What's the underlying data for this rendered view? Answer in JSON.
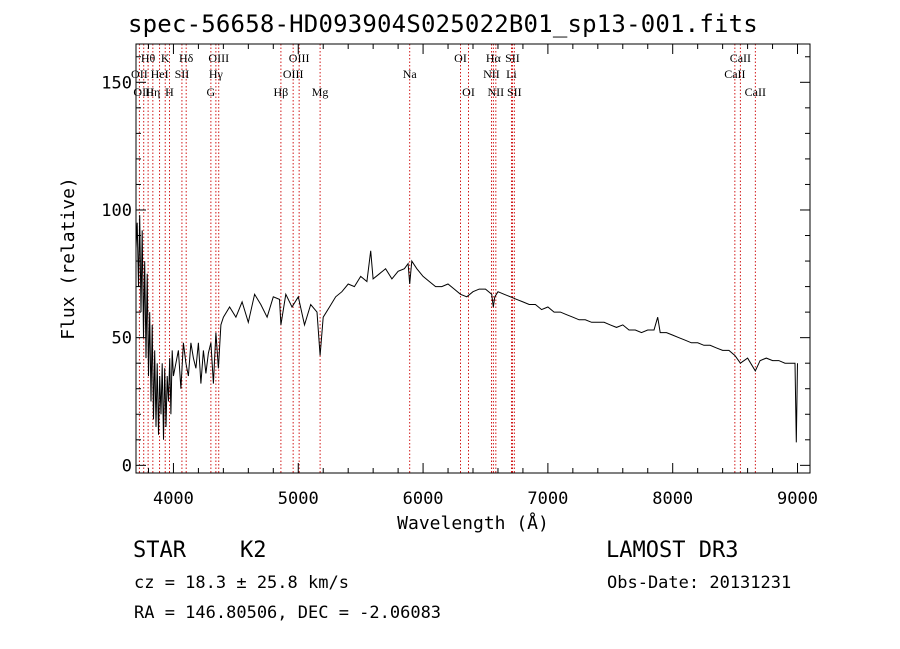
{
  "chart_data": {
    "type": "line",
    "title": "spec-56658-HD093904S025022B01_sp13-001.fits",
    "xlabel": "Wavelength (Å)",
    "ylabel": "Flux (relative)",
    "xlim": [
      3700,
      9100
    ],
    "ylim": [
      -3,
      165
    ],
    "xticks": [
      4000,
      5000,
      6000,
      7000,
      8000,
      9000
    ],
    "yticks": [
      0,
      50,
      100,
      150
    ],
    "series": [
      {
        "name": "flux",
        "x": [
          3700,
          3710,
          3720,
          3730,
          3740,
          3750,
          3760,
          3770,
          3780,
          3790,
          3800,
          3810,
          3820,
          3830,
          3840,
          3850,
          3860,
          3870,
          3880,
          3890,
          3900,
          3910,
          3920,
          3930,
          3940,
          3950,
          3960,
          3970,
          3980,
          3990,
          4000,
          4020,
          4040,
          4060,
          4080,
          4100,
          4120,
          4140,
          4160,
          4180,
          4200,
          4220,
          4240,
          4260,
          4280,
          4300,
          4320,
          4340,
          4360,
          4380,
          4400,
          4450,
          4500,
          4550,
          4600,
          4650,
          4700,
          4750,
          4800,
          4850,
          4861,
          4900,
          4950,
          5000,
          5050,
          5100,
          5150,
          5175,
          5200,
          5250,
          5300,
          5350,
          5400,
          5450,
          5500,
          5550,
          5580,
          5600,
          5650,
          5700,
          5750,
          5800,
          5850,
          5880,
          5893,
          5910,
          5950,
          6000,
          6050,
          6100,
          6150,
          6200,
          6250,
          6300,
          6350,
          6400,
          6450,
          6500,
          6550,
          6563,
          6575,
          6600,
          6650,
          6700,
          6750,
          6800,
          6850,
          6900,
          6950,
          7000,
          7050,
          7100,
          7150,
          7200,
          7250,
          7300,
          7350,
          7400,
          7450,
          7500,
          7550,
          7600,
          7650,
          7700,
          7750,
          7800,
          7850,
          7880,
          7900,
          7950,
          8000,
          8050,
          8100,
          8150,
          8200,
          8250,
          8300,
          8350,
          8400,
          8450,
          8498,
          8542,
          8600,
          8662,
          8700,
          8750,
          8800,
          8850,
          8900,
          8950,
          8980,
          8990,
          9000
        ],
        "values": [
          85,
          95,
          70,
          98,
          60,
          92,
          50,
          80,
          42,
          75,
          35,
          60,
          25,
          55,
          18,
          45,
          15,
          40,
          12,
          35,
          20,
          40,
          10,
          38,
          15,
          35,
          25,
          42,
          20,
          45,
          35,
          40,
          45,
          30,
          48,
          40,
          35,
          48,
          42,
          38,
          48,
          32,
          45,
          36,
          44,
          48,
          32,
          52,
          38,
          55,
          58,
          62,
          58,
          64,
          56,
          67,
          63,
          58,
          66,
          65,
          55,
          67,
          62,
          66,
          55,
          63,
          60,
          43,
          58,
          62,
          66,
          68,
          71,
          70,
          74,
          72,
          84,
          73,
          75,
          77,
          73,
          76,
          77,
          79,
          71,
          80,
          77,
          74,
          72,
          70,
          70,
          71,
          69,
          67,
          66,
          68,
          69,
          69,
          67,
          62,
          66,
          68,
          67,
          66,
          65,
          64,
          63,
          63,
          61,
          62,
          60,
          60,
          59,
          58,
          57,
          57,
          56,
          56,
          56,
          55,
          54,
          55,
          53,
          53,
          52,
          53,
          53,
          58,
          52,
          52,
          51,
          50,
          49,
          48,
          48,
          47,
          47,
          46,
          45,
          45,
          43,
          40,
          42,
          37,
          41,
          42,
          41,
          41,
          40,
          40,
          40,
          9,
          40
        ]
      }
    ],
    "lines": [
      {
        "name": "Hθ",
        "x": 3797,
        "row": 1
      },
      {
        "name": "OII",
        "x": 3727,
        "row": 2
      },
      {
        "name": "OIII",
        "x": 3762,
        "row": 3
      },
      {
        "name": "Hη",
        "x": 3835,
        "row": 3
      },
      {
        "name": "K",
        "x": 3934,
        "row": 1
      },
      {
        "name": "HeI",
        "x": 3889,
        "row": 2
      },
      {
        "name": "H",
        "x": 3968,
        "row": 3
      },
      {
        "name": "SII",
        "x": 4068,
        "row": 2
      },
      {
        "name": "Hδ",
        "x": 4102,
        "row": 1
      },
      {
        "name": "OIII",
        "x": 4363,
        "row": 1
      },
      {
        "name": "Hγ",
        "x": 4340,
        "row": 2
      },
      {
        "name": "G",
        "x": 4300,
        "row": 3
      },
      {
        "name": "OIII",
        "x": 5007,
        "row": 1
      },
      {
        "name": "OIII",
        "x": 4959,
        "row": 2
      },
      {
        "name": "Hβ",
        "x": 4861,
        "row": 3
      },
      {
        "name": "Mg",
        "x": 5175,
        "row": 3
      },
      {
        "name": "Na",
        "x": 5893,
        "row": 2
      },
      {
        "name": "OI",
        "x": 6300,
        "row": 1
      },
      {
        "name": "OI",
        "x": 6364,
        "row": 3
      },
      {
        "name": "Hα",
        "x": 6563,
        "row": 1
      },
      {
        "name": "NII",
        "x": 6548,
        "row": 2
      },
      {
        "name": "NII",
        "x": 6583,
        "row": 3
      },
      {
        "name": "SII",
        "x": 6716,
        "row": 1
      },
      {
        "name": "Li",
        "x": 6708,
        "row": 2
      },
      {
        "name": "SII",
        "x": 6731,
        "row": 3
      },
      {
        "name": "CaII",
        "x": 8542,
        "row": 1
      },
      {
        "name": "CaII",
        "x": 8498,
        "row": 2
      },
      {
        "name": "CaII",
        "x": 8662,
        "row": 3
      }
    ]
  },
  "info": {
    "object_type": "STAR",
    "subclass": "K2",
    "survey": "LAMOST DR3",
    "cz": "cz = 18.3 ± 25.8 km/s",
    "obs_date": "Obs-Date: 20131231",
    "coords": "RA = 146.80506, DEC =  -2.06083"
  },
  "colors": {
    "line_marker": "#cc0000",
    "spectrum": "#000000"
  }
}
